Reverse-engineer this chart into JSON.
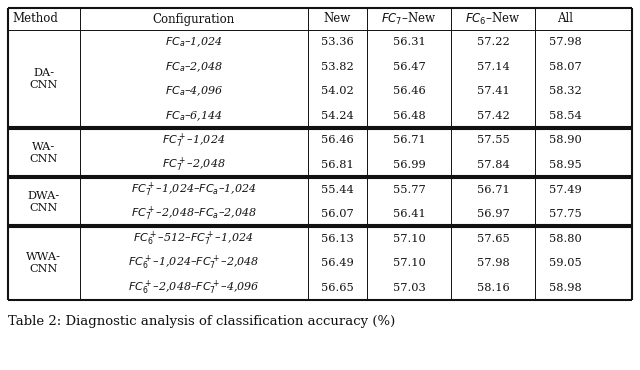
{
  "title": "Table 2: Diagnostic analysis of classification accuracy (%)",
  "col_proportions": [
    0.115,
    0.365,
    0.095,
    0.135,
    0.135,
    0.095
  ],
  "sections": [
    {
      "method": "DA-\nCNN",
      "rows": [
        {
          "config": "$FC_a$–1,024",
          "new": "53.36",
          "fc7new": "56.31",
          "fc6new": "57.22",
          "all": "57.98"
        },
        {
          "config": "$FC_a$–2,048",
          "new": "53.82",
          "fc7new": "56.47",
          "fc6new": "57.14",
          "all": "58.07"
        },
        {
          "config": "$FC_a$–4,096",
          "new": "54.02",
          "fc7new": "56.46",
          "fc6new": "57.41",
          "all": "58.32"
        },
        {
          "config": "$FC_a$–6,144",
          "new": "54.24",
          "fc7new": "56.48",
          "fc6new": "57.42",
          "all": "58.54"
        }
      ]
    },
    {
      "method": "WA-\nCNN",
      "rows": [
        {
          "config": "$FC_7^+$–1,024",
          "new": "56.46",
          "fc7new": "56.71",
          "fc6new": "57.55",
          "all": "58.90"
        },
        {
          "config": "$FC_7^+$–2,048",
          "new": "56.81",
          "fc7new": "56.99",
          "fc6new": "57.84",
          "all": "58.95"
        }
      ]
    },
    {
      "method": "DWA-\nCNN",
      "rows": [
        {
          "config": "$FC_7^+$–1,024–$FC_a$–1,024",
          "new": "55.44",
          "fc7new": "55.77",
          "fc6new": "56.71",
          "all": "57.49"
        },
        {
          "config": "$FC_7^+$–2,048–$FC_a$–2,048",
          "new": "56.07",
          "fc7new": "56.41",
          "fc6new": "56.97",
          "all": "57.75"
        }
      ]
    },
    {
      "method": "WWA-\nCNN",
      "rows": [
        {
          "config": "$FC_6^+$–512–$FC_7^+$–1,024",
          "new": "56.13",
          "fc7new": "57.10",
          "fc6new": "57.65",
          "all": "58.80"
        },
        {
          "config": "$FC_6^+$–1,024–$FC_7^+$–2,048",
          "new": "56.49",
          "fc7new": "57.10",
          "fc6new": "57.98",
          "all": "59.05"
        },
        {
          "config": "$FC_6^+$–2,048–$FC_7^+$–4,096",
          "new": "56.65",
          "fc7new": "57.03",
          "fc6new": "58.16",
          "all": "58.98"
        }
      ]
    }
  ],
  "text_color": "#111111",
  "thick_lw": 1.5,
  "thin_lw": 0.7,
  "fs_header": 8.5,
  "fs_cell": 8.2,
  "fs_caption": 9.5
}
